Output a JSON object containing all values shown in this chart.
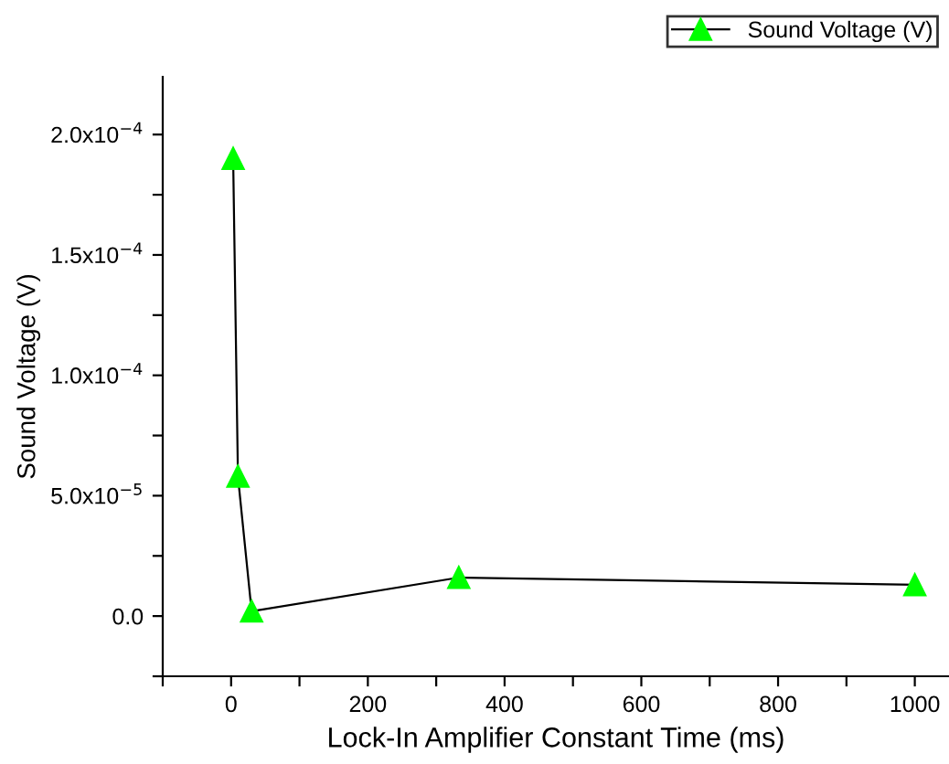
{
  "chart_data": {
    "type": "line",
    "xlabel": "Lock-In Amplifier Constant Time (ms)",
    "ylabel": "Sound Voltage (V)",
    "series": [
      {
        "name": "Sound Voltage (V)",
        "color": "#00ff00",
        "x": [
          3,
          10,
          30,
          333,
          1000
        ],
        "values": [
          0.00019,
          5.8e-05,
          2e-06,
          1.6e-05,
          1.3e-05
        ]
      }
    ],
    "xlim": [
      -100,
      1050
    ],
    "ylim": [
      -2.5e-05,
      0.000224
    ],
    "xticks": [
      {
        "value": -100,
        "label": null
      },
      0,
      {
        "value": 100,
        "label": null
      },
      200,
      {
        "value": 300,
        "label": null
      },
      400,
      {
        "value": 500,
        "label": null
      },
      600,
      {
        "value": 700,
        "label": null
      },
      800,
      {
        "value": 900,
        "label": null
      },
      1000
    ],
    "yticks": [
      {
        "value": -2.5e-05,
        "label": null
      },
      {
        "value": 0,
        "label": "0.0"
      },
      {
        "value": 2.5e-05,
        "label": null
      },
      {
        "value": 5e-05,
        "label": "5.0x10$^{−5}$"
      },
      {
        "value": 7.5e-05,
        "label": null
      },
      {
        "value": 0.0001,
        "label": "1.0x10$^{−4}$"
      },
      {
        "value": 0.000125,
        "label": null
      },
      {
        "value": 0.00015,
        "label": "1.5x10$^{−4}$"
      },
      {
        "value": 0.000175,
        "label": null
      },
      {
        "value": 0.0002,
        "label": "2.0x10$^{−4}$"
      }
    ],
    "marker": "triangle",
    "line_style": "solid",
    "legend": "top right",
    "grid": false
  }
}
